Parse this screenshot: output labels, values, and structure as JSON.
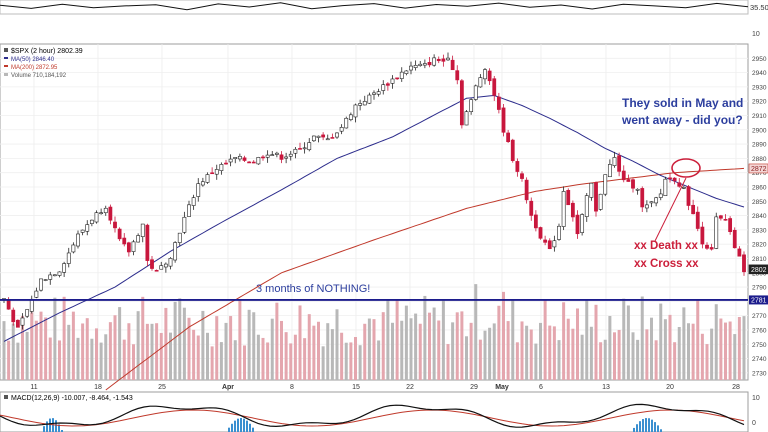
{
  "chart_data": [
    {
      "type": "line",
      "panel": "top-indicator",
      "right_axis_label": "35.50",
      "right_axis_ticks": [
        "10"
      ],
      "series": [
        {
          "values": [
            62,
            40,
            70,
            45,
            58,
            66,
            30,
            72,
            50,
            80,
            38,
            60,
            74,
            42,
            68,
            55,
            78,
            48,
            64,
            36,
            70,
            58,
            44,
            76,
            52
          ]
        }
      ]
    },
    {
      "type": "candlestick",
      "panel": "price",
      "legend": [
        {
          "text": "$SPX (2 hour) 2802.39",
          "color": "#000000"
        },
        {
          "text": "MA(50) 2846.40",
          "color": "#2c2c8c"
        },
        {
          "text": "MA(200) 2872.95",
          "color": "#c0392b"
        },
        {
          "text": "Volume 710,184,192",
          "color": "#555555"
        }
      ],
      "x_tick_labels": [
        "11",
        "18",
        "25",
        "Apr",
        "8",
        "15",
        "22",
        "29",
        "May",
        "6",
        "13",
        "20",
        "28"
      ],
      "y_ticks": [
        2730,
        2740,
        2750,
        2760,
        2770,
        2780,
        2790,
        2800,
        2810,
        2820,
        2830,
        2840,
        2850,
        2860,
        2870,
        2880,
        2890,
        2900,
        2910,
        2920,
        2930,
        2940,
        2950
      ],
      "ylim": [
        2725,
        2960
      ],
      "price_anchors": [
        [
          0,
          2782
        ],
        [
          3,
          2760
        ],
        [
          5,
          2774
        ],
        [
          8,
          2795
        ],
        [
          12,
          2802
        ],
        [
          16,
          2826
        ],
        [
          19,
          2838
        ],
        [
          22,
          2847
        ],
        [
          25,
          2822
        ],
        [
          27,
          2815
        ],
        [
          30,
          2834
        ],
        [
          31,
          2808
        ],
        [
          33,
          2800
        ],
        [
          36,
          2812
        ],
        [
          39,
          2838
        ],
        [
          42,
          2862
        ],
        [
          46,
          2873
        ],
        [
          50,
          2880
        ],
        [
          54,
          2878
        ],
        [
          57,
          2884
        ],
        [
          60,
          2881
        ],
        [
          64,
          2886
        ],
        [
          67,
          2895
        ],
        [
          70,
          2893
        ],
        [
          73,
          2902
        ],
        [
          76,
          2917
        ],
        [
          79,
          2923
        ],
        [
          81,
          2928
        ],
        [
          84,
          2935
        ],
        [
          86,
          2940
        ],
        [
          88,
          2944
        ],
        [
          91,
          2945
        ],
        [
          93,
          2949
        ],
        [
          95,
          2948
        ],
        [
          96,
          2952
        ],
        [
          98,
          2935
        ],
        [
          99,
          2905
        ],
        [
          101,
          2920
        ],
        [
          102,
          2930
        ],
        [
          104,
          2944
        ],
        [
          106,
          2925
        ],
        [
          108,
          2900
        ],
        [
          110,
          2880
        ],
        [
          112,
          2864
        ],
        [
          114,
          2840
        ],
        [
          116,
          2826
        ],
        [
          118,
          2815
        ],
        [
          120,
          2833
        ],
        [
          121,
          2858
        ],
        [
          123,
          2840
        ],
        [
          124,
          2827
        ],
        [
          126,
          2852
        ],
        [
          127,
          2862
        ],
        [
          128,
          2842
        ],
        [
          130,
          2870
        ],
        [
          132,
          2880
        ],
        [
          133,
          2870
        ],
        [
          135,
          2862
        ],
        [
          137,
          2860
        ],
        [
          138,
          2845
        ],
        [
          140,
          2848
        ],
        [
          142,
          2855
        ],
        [
          143,
          2866
        ],
        [
          145,
          2866
        ],
        [
          147,
          2858
        ],
        [
          149,
          2840
        ],
        [
          151,
          2822
        ],
        [
          153,
          2815
        ],
        [
          154,
          2838
        ],
        [
          156,
          2836
        ],
        [
          158,
          2818
        ],
        [
          160,
          2802
        ]
      ],
      "ma50_anchors": [
        [
          0,
          2752
        ],
        [
          12,
          2772
        ],
        [
          24,
          2790
        ],
        [
          36,
          2815
        ],
        [
          48,
          2837
        ],
        [
          60,
          2858
        ],
        [
          72,
          2880
        ],
        [
          84,
          2895
        ],
        [
          94,
          2912
        ],
        [
          100,
          2922
        ],
        [
          106,
          2924
        ],
        [
          112,
          2917
        ],
        [
          118,
          2908
        ],
        [
          124,
          2898
        ],
        [
          130,
          2887
        ],
        [
          136,
          2878
        ],
        [
          142,
          2868
        ],
        [
          148,
          2860
        ],
        [
          154,
          2852
        ],
        [
          160,
          2846
        ]
      ],
      "ma200_anchors": [
        [
          22,
          2718
        ],
        [
          40,
          2762
        ],
        [
          60,
          2800
        ],
        [
          80,
          2823
        ],
        [
          100,
          2845
        ],
        [
          115,
          2857
        ],
        [
          125,
          2862
        ],
        [
          135,
          2866
        ],
        [
          145,
          2870
        ],
        [
          160,
          2873
        ]
      ],
      "price_labels": [
        {
          "text": "2872",
          "value": 2872.95
        },
        {
          "text": "2802",
          "value": 2802.39
        }
      ],
      "horizontal_line": {
        "value": 2781,
        "color": "#1c1c8c",
        "label": "2781"
      },
      "annotations": [
        {
          "text": "3 months of NOTHING!",
          "color": "#2c3e9e"
        },
        {
          "text": "They sold in May and",
          "color": "#2c3e9e"
        },
        {
          "text": "went away - did you?",
          "color": "#2c3e9e"
        },
        {
          "text": "xx Death xx",
          "color": "#cc1f3b"
        },
        {
          "text": "xx Cross xx",
          "color": "#cc1f3b"
        }
      ],
      "colors": {
        "up": "#ffffff",
        "down": "#c8173d",
        "volume_up": "#b8b8b8",
        "volume_down": "#e4a6ae",
        "ma50": "#2c2c8c",
        "ma200": "#c0392b"
      }
    },
    {
      "type": "line",
      "panel": "macd",
      "legend": "MACD(12,26,9) -10.007, -8.464, -1.543",
      "right_axis_ticks": [
        "10",
        "0"
      ]
    }
  ]
}
